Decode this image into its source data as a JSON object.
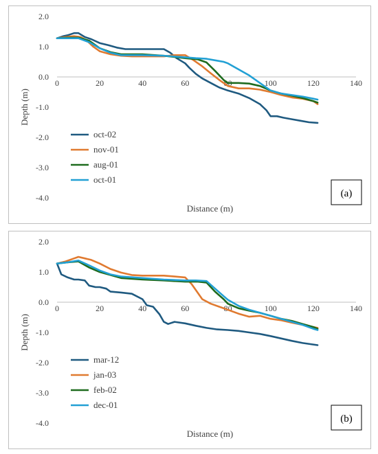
{
  "chart_data": [
    {
      "type": "line",
      "panel_label": "(a)",
      "xlabel": "Distance (m)",
      "ylabel": "Depth (m)",
      "xlim": [
        0,
        140
      ],
      "ylim": [
        -4.0,
        2.0
      ],
      "x_ticks": [
        0,
        20,
        40,
        60,
        80,
        100,
        120,
        140
      ],
      "y_ticks": [
        2.0,
        1.0,
        0.0,
        -1.0,
        -2.0,
        -3.0,
        -4.0
      ],
      "y_tick_labels": [
        "2.0",
        "1.0",
        "0.0",
        "-1.0",
        "-2.0",
        "-3.0",
        "-4.0"
      ],
      "grid": false,
      "legend_position": "lower-left",
      "series": [
        {
          "name": "oct-02",
          "color": "#1f5a80",
          "x": [
            0,
            3,
            5,
            8,
            10,
            13,
            16,
            20,
            24,
            28,
            32,
            40,
            50,
            53,
            56,
            60,
            62,
            65,
            68,
            72,
            76,
            80,
            85,
            90,
            95,
            98,
            100,
            103,
            106,
            110,
            114,
            118,
            122
          ],
          "y": [
            1.28,
            1.35,
            1.38,
            1.45,
            1.45,
            1.32,
            1.25,
            1.12,
            1.05,
            0.97,
            0.92,
            0.92,
            0.92,
            0.8,
            0.62,
            0.45,
            0.3,
            0.1,
            -0.05,
            -0.2,
            -0.35,
            -0.45,
            -0.55,
            -0.7,
            -0.9,
            -1.1,
            -1.3,
            -1.3,
            -1.35,
            -1.4,
            -1.45,
            -1.5,
            -1.52
          ]
        },
        {
          "name": "nov-01",
          "color": "#e07a30",
          "x": [
            0,
            4,
            8,
            11,
            14,
            17,
            20,
            25,
            30,
            35,
            40,
            45,
            50,
            55,
            60,
            64,
            68,
            72,
            76,
            80,
            85,
            90,
            95,
            100,
            105,
            110,
            115,
            120,
            122
          ],
          "y": [
            1.28,
            1.32,
            1.35,
            1.32,
            1.2,
            1.0,
            0.85,
            0.75,
            0.7,
            0.68,
            0.68,
            0.68,
            0.68,
            0.72,
            0.72,
            0.55,
            0.35,
            0.12,
            -0.1,
            -0.3,
            -0.38,
            -0.38,
            -0.42,
            -0.5,
            -0.6,
            -0.68,
            -0.72,
            -0.8,
            -0.9
          ]
        },
        {
          "name": "aug-01",
          "color": "#1e6b1e",
          "x": [
            0,
            5,
            10,
            15,
            20,
            25,
            30,
            40,
            50,
            60,
            66,
            70,
            74,
            78,
            80,
            85,
            90,
            95,
            100,
            105,
            110,
            115,
            120,
            122
          ],
          "y": [
            1.28,
            1.3,
            1.3,
            1.2,
            0.95,
            0.82,
            0.75,
            0.75,
            0.7,
            0.62,
            0.58,
            0.48,
            0.2,
            -0.1,
            -0.2,
            -0.2,
            -0.22,
            -0.3,
            -0.45,
            -0.55,
            -0.62,
            -0.7,
            -0.8,
            -0.85
          ]
        },
        {
          "name": "oct-01",
          "color": "#22a0d4",
          "x": [
            0,
            5,
            10,
            15,
            20,
            25,
            30,
            40,
            50,
            60,
            65,
            70,
            74,
            78,
            80,
            85,
            90,
            95,
            100,
            105,
            110,
            115,
            120,
            122
          ],
          "y": [
            1.28,
            1.28,
            1.28,
            1.15,
            0.95,
            0.8,
            0.72,
            0.72,
            0.7,
            0.65,
            0.62,
            0.6,
            0.55,
            0.5,
            0.45,
            0.25,
            0.05,
            -0.2,
            -0.45,
            -0.55,
            -0.6,
            -0.65,
            -0.72,
            -0.75
          ]
        }
      ]
    },
    {
      "type": "line",
      "panel_label": "(b)",
      "xlabel": "Distance (m)",
      "ylabel": "Depth (m)",
      "xlim": [
        0,
        140
      ],
      "ylim": [
        -4.0,
        2.0
      ],
      "x_ticks": [
        0,
        20,
        40,
        60,
        80,
        100,
        120,
        140
      ],
      "y_ticks": [
        2.0,
        1.0,
        0.0,
        -1.0,
        -2.0,
        -3.0,
        -4.0
      ],
      "y_tick_labels": [
        "2.0",
        "1.0",
        "0.0",
        "-1.0",
        "-2.0",
        "-3.0",
        "-4.0"
      ],
      "grid": false,
      "legend_position": "lower-left",
      "series": [
        {
          "name": "mar-12",
          "color": "#1f5a80",
          "x": [
            0,
            2,
            5,
            8,
            10,
            13,
            15,
            18,
            20,
            23,
            25,
            30,
            35,
            40,
            42,
            45,
            48,
            50,
            52,
            55,
            60,
            65,
            70,
            75,
            80,
            85,
            90,
            95,
            100,
            105,
            110,
            115,
            120,
            122
          ],
          "y": [
            1.28,
            0.92,
            0.82,
            0.75,
            0.75,
            0.72,
            0.55,
            0.5,
            0.5,
            0.45,
            0.35,
            0.32,
            0.28,
            0.1,
            -0.1,
            -0.15,
            -0.4,
            -0.65,
            -0.72,
            -0.65,
            -0.7,
            -0.78,
            -0.85,
            -0.9,
            -0.92,
            -0.95,
            -1.0,
            -1.05,
            -1.12,
            -1.2,
            -1.28,
            -1.35,
            -1.4,
            -1.42
          ]
        },
        {
          "name": "jan-03",
          "color": "#e07a30",
          "x": [
            0,
            4,
            8,
            10,
            13,
            16,
            20,
            25,
            30,
            35,
            40,
            45,
            50,
            55,
            60,
            63,
            65,
            68,
            72,
            76,
            80,
            85,
            90,
            95,
            100,
            105,
            110,
            115,
            120,
            122
          ],
          "y": [
            1.28,
            1.35,
            1.45,
            1.5,
            1.45,
            1.4,
            1.28,
            1.1,
            0.98,
            0.9,
            0.88,
            0.88,
            0.88,
            0.85,
            0.82,
            0.6,
            0.4,
            0.1,
            -0.05,
            -0.15,
            -0.25,
            -0.38,
            -0.48,
            -0.45,
            -0.55,
            -0.6,
            -0.68,
            -0.75,
            -0.82,
            -0.85
          ]
        },
        {
          "name": "feb-02",
          "color": "#1e6b1e",
          "x": [
            0,
            5,
            10,
            15,
            20,
            25,
            30,
            40,
            50,
            60,
            66,
            70,
            74,
            78,
            80,
            85,
            90,
            95,
            100,
            105,
            110,
            115,
            120,
            122
          ],
          "y": [
            1.28,
            1.32,
            1.35,
            1.15,
            1.0,
            0.9,
            0.8,
            0.75,
            0.72,
            0.68,
            0.68,
            0.65,
            0.35,
            0.1,
            -0.05,
            -0.2,
            -0.28,
            -0.35,
            -0.45,
            -0.55,
            -0.62,
            -0.72,
            -0.82,
            -0.88
          ]
        },
        {
          "name": "dec-01",
          "color": "#22a0d4",
          "x": [
            0,
            5,
            10,
            15,
            20,
            25,
            30,
            40,
            50,
            60,
            65,
            70,
            74,
            78,
            80,
            85,
            90,
            95,
            100,
            105,
            110,
            115,
            120,
            122
          ],
          "y": [
            1.28,
            1.32,
            1.38,
            1.22,
            1.05,
            0.92,
            0.85,
            0.8,
            0.75,
            0.72,
            0.72,
            0.7,
            0.45,
            0.2,
            0.08,
            -0.12,
            -0.25,
            -0.35,
            -0.45,
            -0.55,
            -0.65,
            -0.75,
            -0.88,
            -0.92
          ]
        }
      ]
    }
  ]
}
